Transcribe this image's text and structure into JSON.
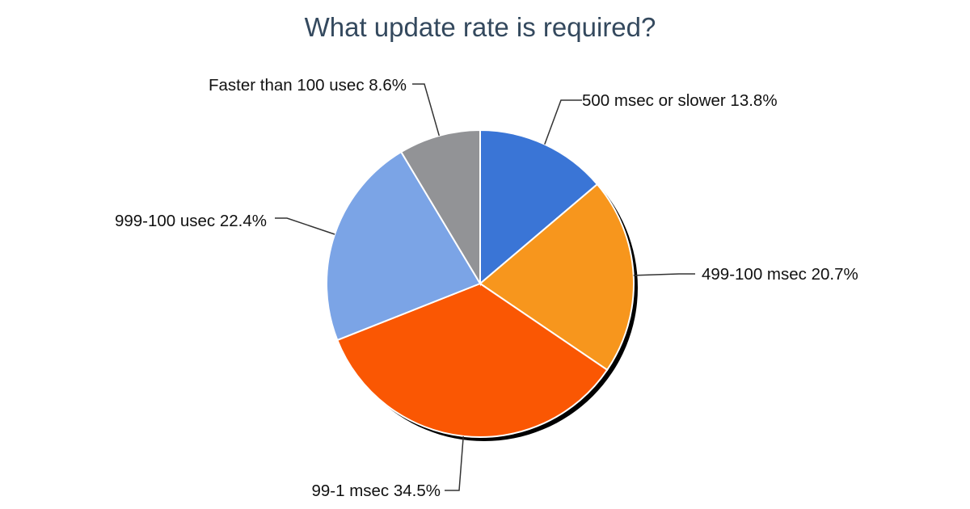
{
  "chart_data": {
    "type": "pie",
    "title": "What update rate is required?",
    "start": "top",
    "direction": "clockwise",
    "slices": [
      {
        "label": "500 msec or slower 13.8%",
        "category": "500 msec or slower",
        "value": 13.8,
        "color": "#3a75d6"
      },
      {
        "label": "499-100 msec 20.7%",
        "category": "499-100 msec",
        "value": 20.7,
        "color": "#f7961d"
      },
      {
        "label": "99-1 msec 34.5%",
        "category": "99-1 msec",
        "value": 34.5,
        "color": "#fa5703"
      },
      {
        "label": "999-100 usec 22.4%",
        "category": "999-100 usec",
        "value": 22.4,
        "color": "#7ba4e6"
      },
      {
        "label": "Faster than 100 usec 8.6%",
        "category": "Faster than 100 usec",
        "value": 8.6,
        "color": "#929396"
      }
    ]
  }
}
